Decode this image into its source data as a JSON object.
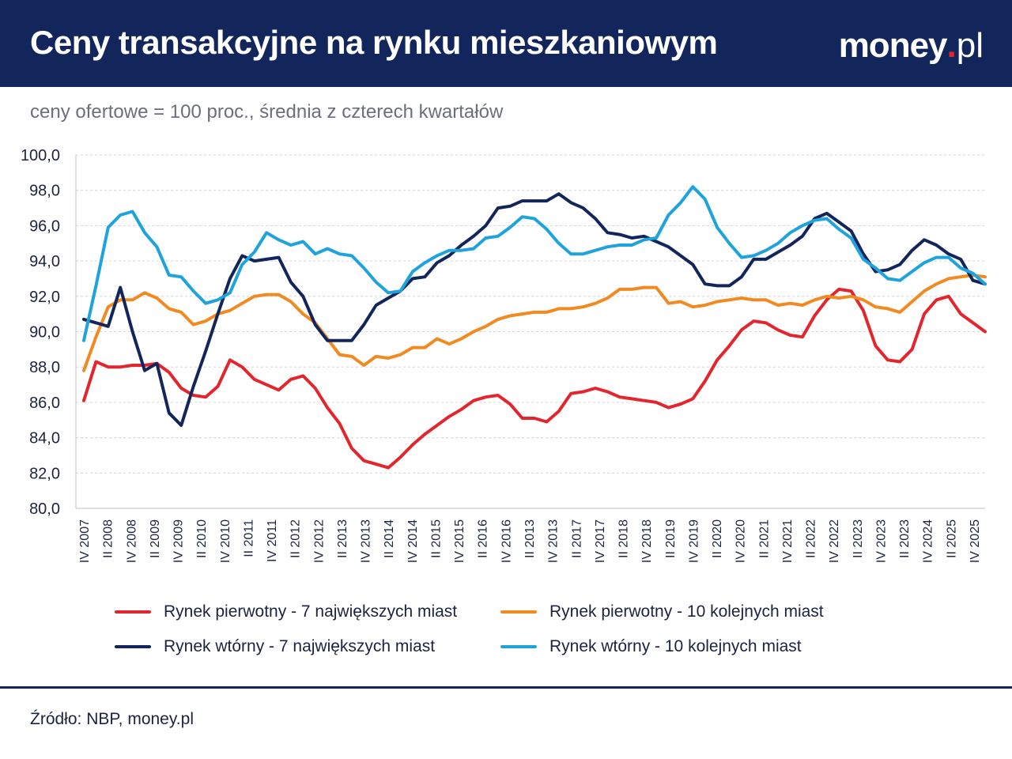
{
  "header": {
    "title": "Ceny transakcyjne na rynku mieszkaniowym",
    "brand_main": "money",
    "brand_dot": ".",
    "brand_tld": "pl"
  },
  "subtitle": "ceny ofertowe = 100 proc., średnia z czterech kwartałów",
  "source": "Źródło: NBP, money.pl",
  "colors": {
    "header_bg": "#13265c",
    "red": "#e3262d",
    "orange": "#f28a22",
    "navy": "#13265c",
    "lightblue": "#1fa3dd"
  },
  "chart_data": {
    "type": "line",
    "ylim": [
      80,
      100
    ],
    "yticks": [
      "100,0",
      "98,0",
      "96,0",
      "94,0",
      "92,0",
      "90,0",
      "88,0",
      "86,0",
      "84,0",
      "82,0",
      "80,0"
    ],
    "ytick_values": [
      100,
      98,
      96,
      94,
      92,
      90,
      88,
      86,
      84,
      82,
      80
    ],
    "x_tick_labels": [
      "IV 2007",
      "II 2008",
      "IV 2008",
      "II 2009",
      "IV 2009",
      "II 2010",
      "IV 2010",
      "II 2011",
      "IV 2011",
      "II 2012",
      "IV 2012",
      "II 2013",
      "IV 2013",
      "II 2014",
      "IV 2014",
      "II 2015",
      "IV 2015",
      "II 2016",
      "IV 2016",
      "II 2013",
      "IV 2013",
      "II 2017",
      "IV 2017",
      "II 2018",
      "IV 2018",
      "II 2019",
      "IV 2019",
      "II 2020",
      "IV 2020",
      "II 2021",
      "IV 2021",
      "II 2022",
      "IV 2022",
      "II 2023",
      "IV 2023",
      "II 2023",
      "IV 2024",
      "II 2025",
      "IV 2025"
    ],
    "grid": true,
    "legend_placement": "bottom",
    "series": [
      {
        "name": "Rynek pierwotny - 7 największych miast",
        "color": "#e3262d",
        "values": [
          86.1,
          88.3,
          88.0,
          88.0,
          88.1,
          88.1,
          88.2,
          87.7,
          86.8,
          86.4,
          86.3,
          86.9,
          88.4,
          88.0,
          87.3,
          87.0,
          86.7,
          87.3,
          87.5,
          86.8,
          85.7,
          84.8,
          83.4,
          82.7,
          82.5,
          82.3,
          82.9,
          83.6,
          84.2,
          84.7,
          85.2,
          85.6,
          86.1,
          86.3,
          86.4,
          85.9,
          85.1,
          85.1,
          84.9,
          85.5,
          86.5,
          86.6,
          86.8,
          86.6,
          86.3,
          86.2,
          86.1,
          86.0,
          85.7,
          85.9,
          86.2,
          87.2,
          88.4,
          89.2,
          90.1,
          90.6,
          90.5,
          90.1,
          89.8,
          89.7,
          90.9,
          91.8,
          92.4,
          92.3,
          91.2,
          89.2,
          88.4,
          88.3,
          89.0,
          91.0,
          91.8,
          92.0,
          91.0,
          90.5,
          90.0
        ]
      },
      {
        "name": "Rynek pierwotny - 10 kolejnych miast",
        "color": "#f28a22",
        "values": [
          87.8,
          89.7,
          91.4,
          91.8,
          91.8,
          92.2,
          91.9,
          91.3,
          91.1,
          90.4,
          90.6,
          91.0,
          91.2,
          91.6,
          92.0,
          92.1,
          92.1,
          91.7,
          91.0,
          90.5,
          89.6,
          88.7,
          88.6,
          88.1,
          88.6,
          88.5,
          88.7,
          89.1,
          89.1,
          89.6,
          89.3,
          89.6,
          90.0,
          90.3,
          90.7,
          90.9,
          91.0,
          91.1,
          91.1,
          91.3,
          91.3,
          91.4,
          91.6,
          91.9,
          92.4,
          92.4,
          92.5,
          92.5,
          91.6,
          91.7,
          91.4,
          91.5,
          91.7,
          91.8,
          91.9,
          91.8,
          91.8,
          91.5,
          91.6,
          91.5,
          91.8,
          92.0,
          91.9,
          92.0,
          91.8,
          91.4,
          91.3,
          91.1,
          91.7,
          92.3,
          92.7,
          93.0,
          93.1,
          93.2,
          93.1
        ]
      },
      {
        "name": "Rynek wtórny - 7 największych miast",
        "color": "#13265c",
        "values": [
          90.7,
          90.5,
          90.3,
          92.5,
          90.0,
          87.8,
          88.2,
          85.4,
          84.7,
          86.9,
          88.9,
          91.0,
          93.0,
          94.3,
          94.0,
          94.1,
          94.2,
          92.8,
          92.0,
          90.4,
          89.5,
          89.5,
          89.5,
          90.4,
          91.5,
          91.9,
          92.3,
          93.0,
          93.1,
          93.9,
          94.3,
          94.9,
          95.4,
          96.0,
          97.0,
          97.1,
          97.4,
          97.4,
          97.4,
          97.8,
          97.3,
          97.0,
          96.4,
          95.6,
          95.5,
          95.3,
          95.4,
          95.1,
          94.8,
          94.3,
          93.8,
          92.7,
          92.6,
          92.6,
          93.1,
          94.1,
          94.1,
          94.5,
          94.9,
          95.4,
          96.4,
          96.7,
          96.2,
          95.7,
          94.4,
          93.4,
          93.5,
          93.8,
          94.6,
          95.2,
          94.9,
          94.4,
          94.1,
          92.9,
          92.7
        ]
      },
      {
        "name": "Rynek wtórny -  10 kolejnych miast",
        "color": "#1fa3dd",
        "values": [
          89.5,
          92.6,
          95.9,
          96.6,
          96.8,
          95.6,
          94.8,
          93.2,
          93.1,
          92.3,
          91.6,
          91.8,
          92.2,
          93.8,
          94.5,
          95.6,
          95.2,
          94.9,
          95.1,
          94.4,
          94.7,
          94.4,
          94.3,
          93.6,
          92.8,
          92.2,
          92.3,
          93.4,
          93.9,
          94.3,
          94.6,
          94.6,
          94.7,
          95.3,
          95.4,
          95.9,
          96.5,
          96.4,
          95.8,
          95.0,
          94.4,
          94.4,
          94.6,
          94.8,
          94.9,
          94.9,
          95.2,
          95.3,
          96.6,
          97.3,
          98.2,
          97.5,
          95.9,
          95.0,
          94.2,
          94.3,
          94.6,
          95.0,
          95.6,
          96.0,
          96.3,
          96.4,
          95.8,
          95.3,
          94.1,
          93.6,
          93.0,
          92.9,
          93.4,
          93.9,
          94.2,
          94.2,
          93.6,
          93.3,
          92.7
        ]
      }
    ]
  }
}
